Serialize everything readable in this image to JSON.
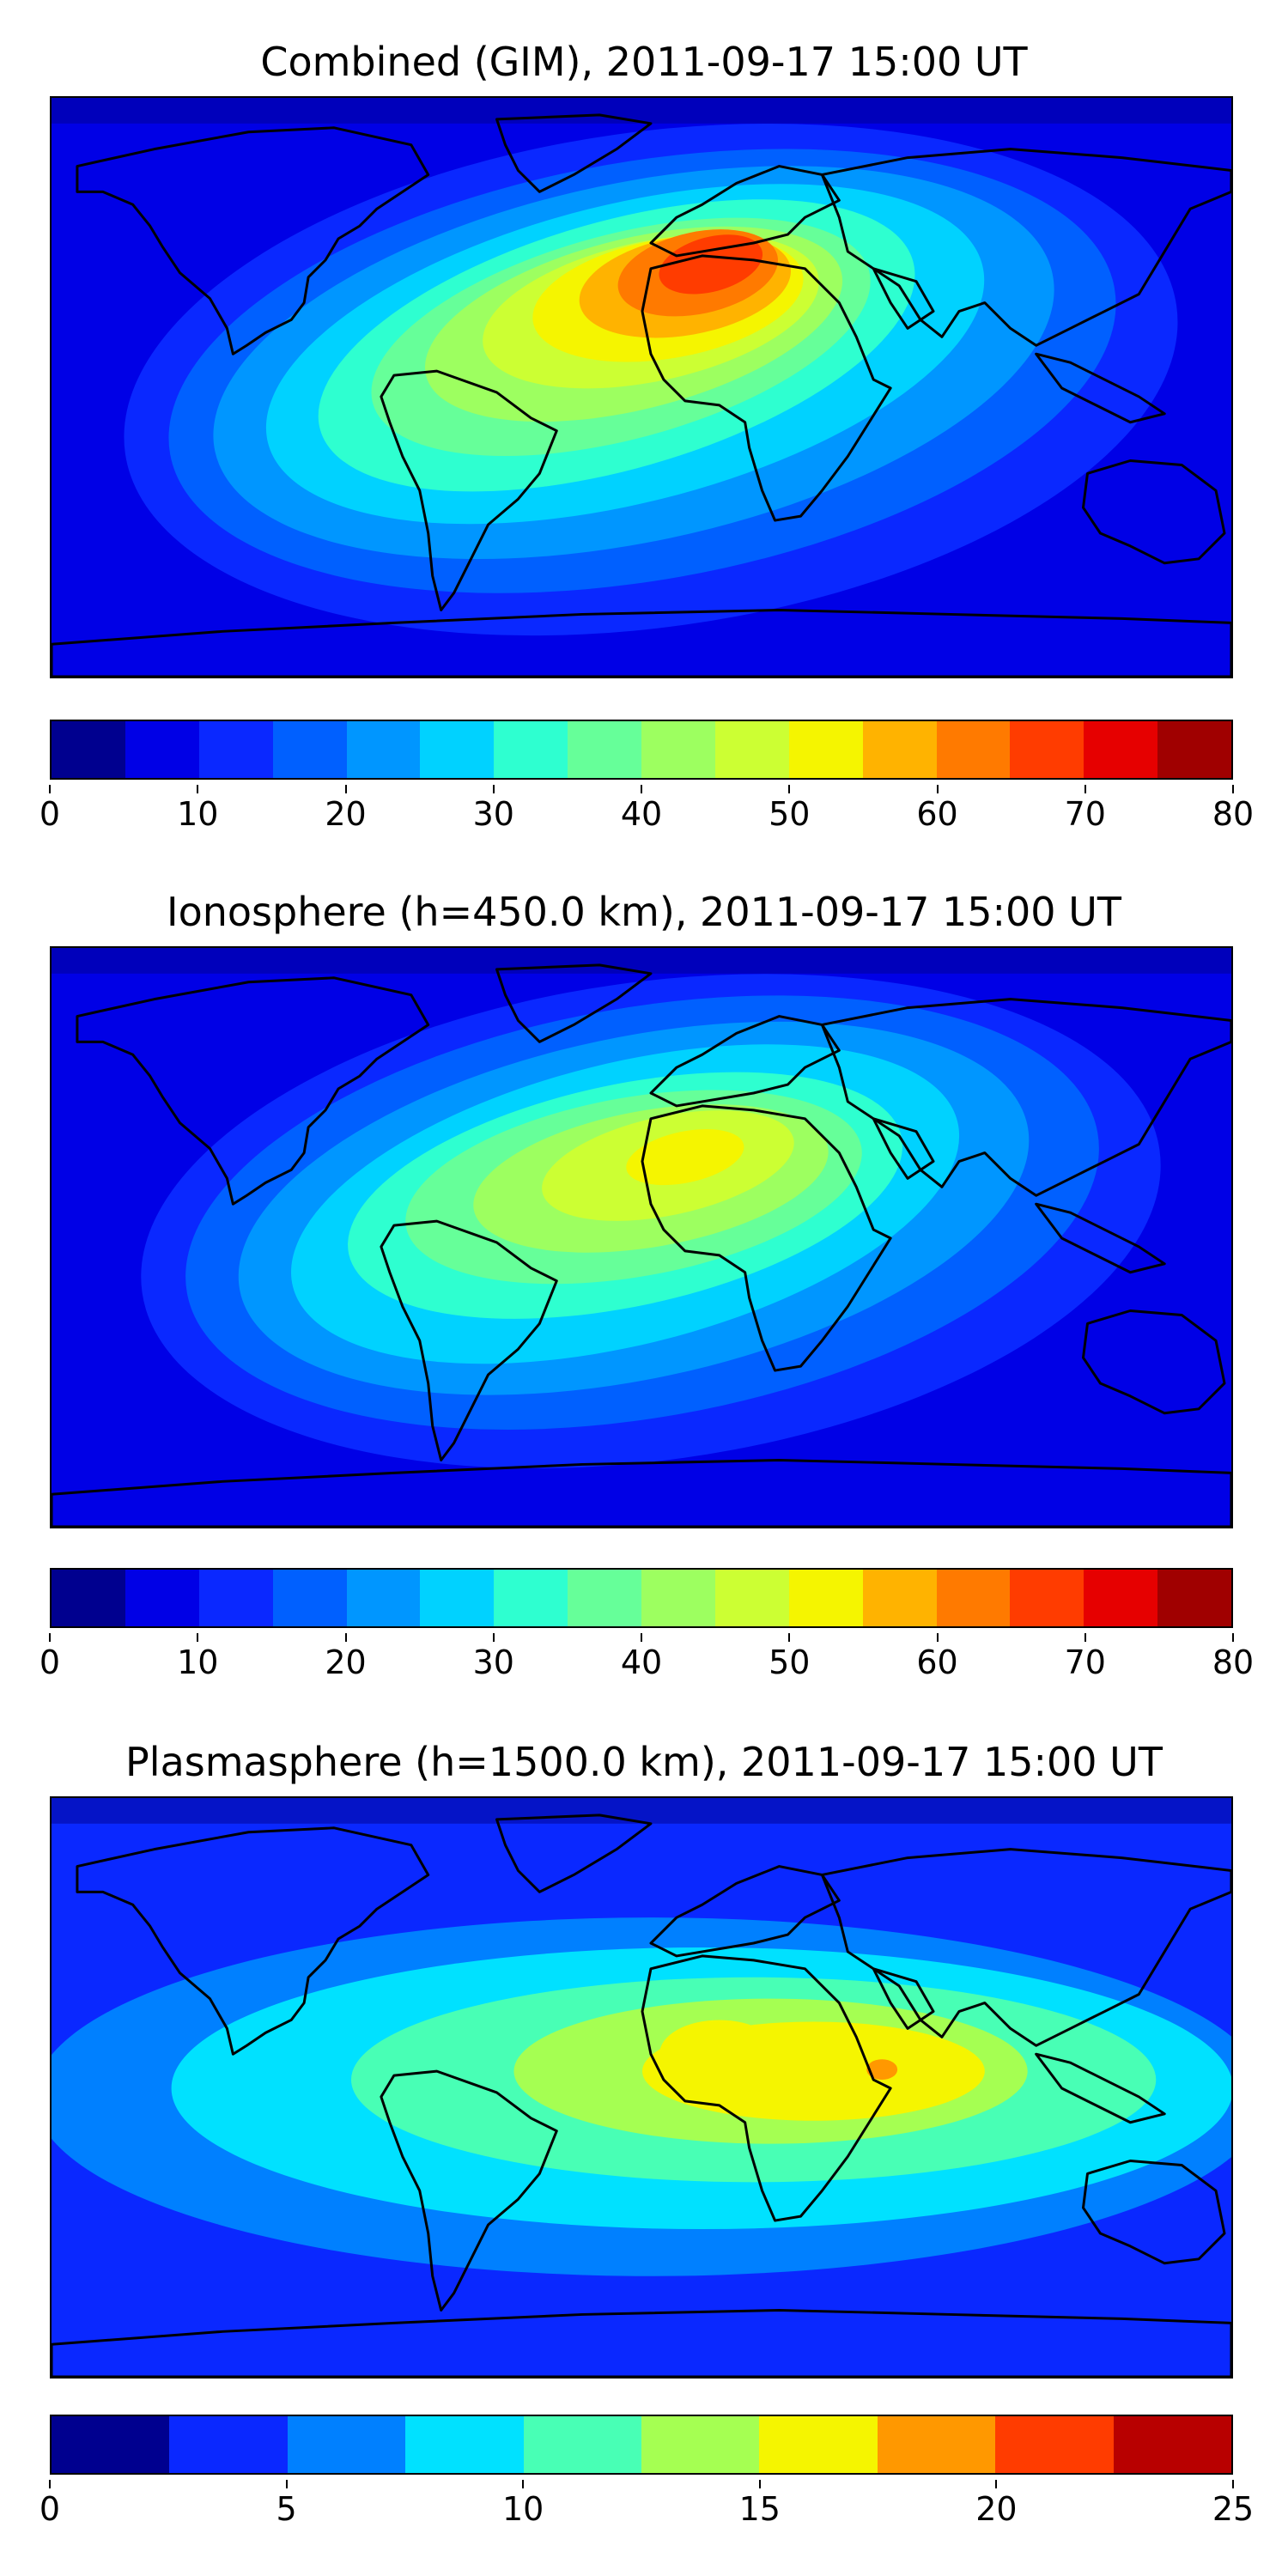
{
  "chart_data": [
    {
      "type": "heatmap",
      "title": "Combined (GIM), 2011-09-17 15:00 UT",
      "colorbar": {
        "min": 0,
        "max": 80,
        "levels": 16,
        "ticks": [
          "0",
          "10",
          "20",
          "30",
          "40",
          "50",
          "60",
          "70",
          "80"
        ],
        "colors": [
          "#00008f",
          "#0000e6",
          "#0a28ff",
          "#0060ff",
          "#0096ff",
          "#00d2ff",
          "#2effd0",
          "#66ff99",
          "#9dff60",
          "#ccff33",
          "#f5f500",
          "#ffb300",
          "#ff7a00",
          "#ff3c00",
          "#e60000",
          "#a00000"
        ]
      },
      "peak_value": 72,
      "peak_region": "West Africa / Sahara"
    },
    {
      "type": "heatmap",
      "title": "Ionosphere  (h=450.0 km), 2011-09-17 15:00 UT",
      "colorbar": {
        "min": 0,
        "max": 80,
        "levels": 16,
        "ticks": [
          "0",
          "10",
          "20",
          "30",
          "40",
          "50",
          "60",
          "70",
          "80"
        ],
        "colors": [
          "#00008f",
          "#0000e6",
          "#0a28ff",
          "#0060ff",
          "#0096ff",
          "#00d2ff",
          "#2effd0",
          "#66ff99",
          "#9dff60",
          "#ccff33",
          "#f5f500",
          "#ffb300",
          "#ff7a00",
          "#ff3c00",
          "#e60000",
          "#a00000"
        ]
      },
      "peak_value": 53,
      "peak_region": "North Africa"
    },
    {
      "type": "heatmap",
      "title": "Plasmasphere (h=1500.0 km), 2011-09-17 15:00 UT",
      "colorbar": {
        "min": 0,
        "max": 25,
        "levels": 10,
        "ticks": [
          "0",
          "5",
          "10",
          "15",
          "20",
          "25"
        ],
        "colors": [
          "#00008f",
          "#0a28ff",
          "#0080ff",
          "#00e1ff",
          "#48ffb5",
          "#a5ff52",
          "#f5f500",
          "#ff9800",
          "#ff3c00",
          "#b80000"
        ]
      },
      "peak_value": 21,
      "peak_region": "Arabian Sea"
    }
  ]
}
